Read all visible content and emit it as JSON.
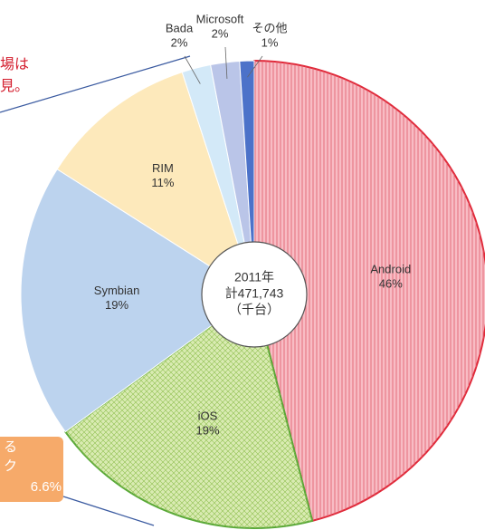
{
  "chart_data": {
    "type": "pie",
    "center_label": [
      "2011年",
      "計471,743",
      "（千台）"
    ],
    "categories": [
      "Android",
      "iOS",
      "Symbian",
      "RIM",
      "Bada",
      "Microsoft",
      "その他"
    ],
    "values": [
      46,
      19,
      19,
      11,
      2,
      2,
      1
    ],
    "value_labels": [
      "46%",
      "19%",
      "19%",
      "11%",
      "2%",
      "2%",
      "1%"
    ],
    "colors": [
      "#f8bcc4",
      "#d9ebb2",
      "#bcd3ee",
      "#fde9bb",
      "#d3e9f8",
      "#bac5e8",
      "#4c72c9"
    ],
    "annotations": [
      "場は",
      "見。",
      "る",
      "ク",
      "6.6%"
    ]
  }
}
